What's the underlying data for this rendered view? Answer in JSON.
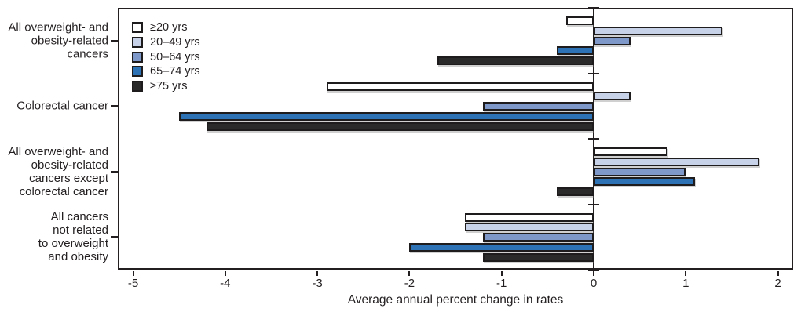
{
  "figure": {
    "background": "#ffffff",
    "frame_color": "#231f20",
    "text_color": "#231f20"
  },
  "chart_data": {
    "type": "bar",
    "orientation": "horizontal",
    "title": "",
    "xlabel": "Average annual percent change in rates",
    "ylabel": "",
    "xlim": [
      -5.17,
      2.17
    ],
    "xticks": [
      -5,
      -4,
      -3,
      -2,
      -1,
      0,
      1,
      2
    ],
    "grid": false,
    "legend_position": "top-left-inside",
    "categories": [
      "All overweight- and obesity-related cancers",
      "Colorectal cancer",
      "All overweight- and obesity-related cancers except colorectal cancer",
      "All cancers not related to overweight and obesity"
    ],
    "category_label_lines": [
      [
        "All overweight- and",
        "obesity-related",
        "cancers"
      ],
      [
        "Colorectal cancer"
      ],
      [
        "All overweight- and",
        "obesity-related",
        "cancers except",
        "colorectal cancer"
      ],
      [
        "All cancers",
        "not related",
        "to overweight",
        "and obesity"
      ]
    ],
    "series": [
      {
        "name": "≥20 yrs",
        "color": "#ffffff",
        "values": [
          -0.3,
          -2.9,
          0.8,
          -1.4
        ]
      },
      {
        "name": "20–49 yrs",
        "color": "#c7d2e9",
        "values": [
          1.4,
          0.4,
          1.8,
          -1.4
        ]
      },
      {
        "name": "50–64 yrs",
        "color": "#7e99c9",
        "values": [
          0.4,
          -1.2,
          1.0,
          -1.2
        ]
      },
      {
        "name": "65–74 yrs",
        "color": "#2e72b6",
        "values": [
          -0.4,
          -4.5,
          1.1,
          -2.0
        ]
      },
      {
        "name": "≥75 yrs",
        "color": "#2b2a2a",
        "values": [
          -1.7,
          -4.2,
          -0.4,
          -1.2
        ]
      }
    ]
  }
}
